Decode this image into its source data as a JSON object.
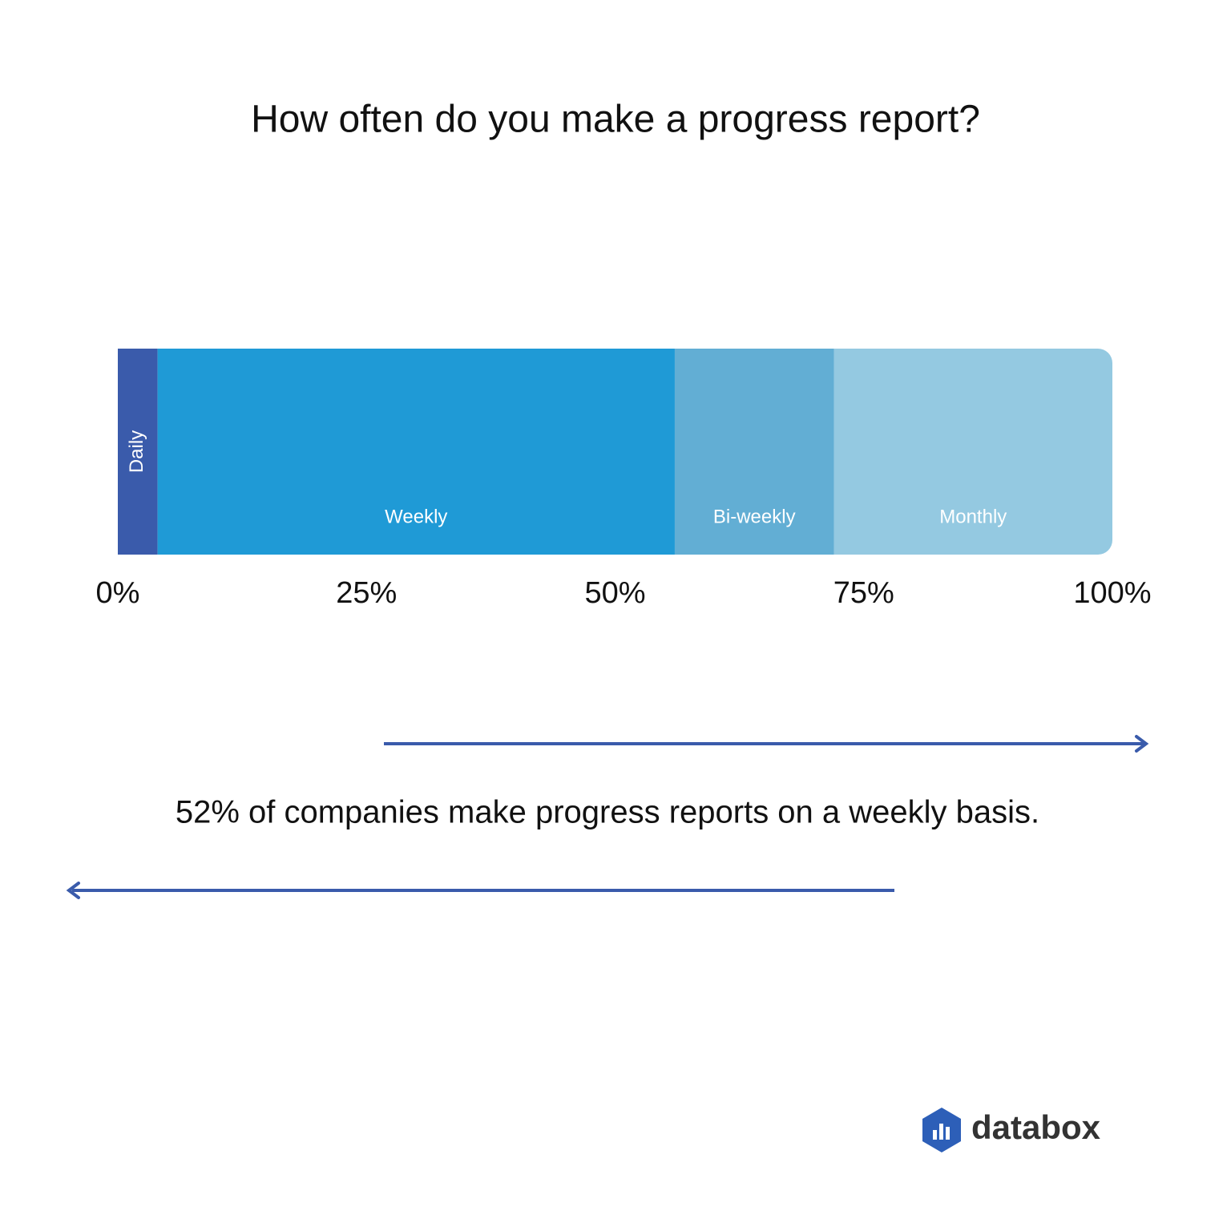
{
  "chart_data": {
    "type": "bar",
    "orientation": "horizontal",
    "stacked": true,
    "title": "How often do you make a progress report?",
    "series": [
      {
        "name": "Daily",
        "color": "#3a5bab",
        "values": [
          4
        ]
      },
      {
        "name": "Weekly",
        "color": "#1f9ad6",
        "values": [
          52
        ]
      },
      {
        "name": "Bi-weekly",
        "color": "#62aed4",
        "values": [
          16
        ]
      },
      {
        "name": "Monthly",
        "color": "#94c9e1",
        "values": [
          28
        ]
      }
    ],
    "xlim": [
      0,
      100
    ],
    "xticks": [
      {
        "value": 0,
        "label": "0%"
      },
      {
        "value": 25,
        "label": "25%"
      },
      {
        "value": 50,
        "label": "50%"
      },
      {
        "value": 75,
        "label": "75%"
      },
      {
        "value": 100,
        "label": "100%"
      }
    ],
    "annotation": "52% of companies make progress reports on a weekly basis."
  },
  "logo": "databox"
}
